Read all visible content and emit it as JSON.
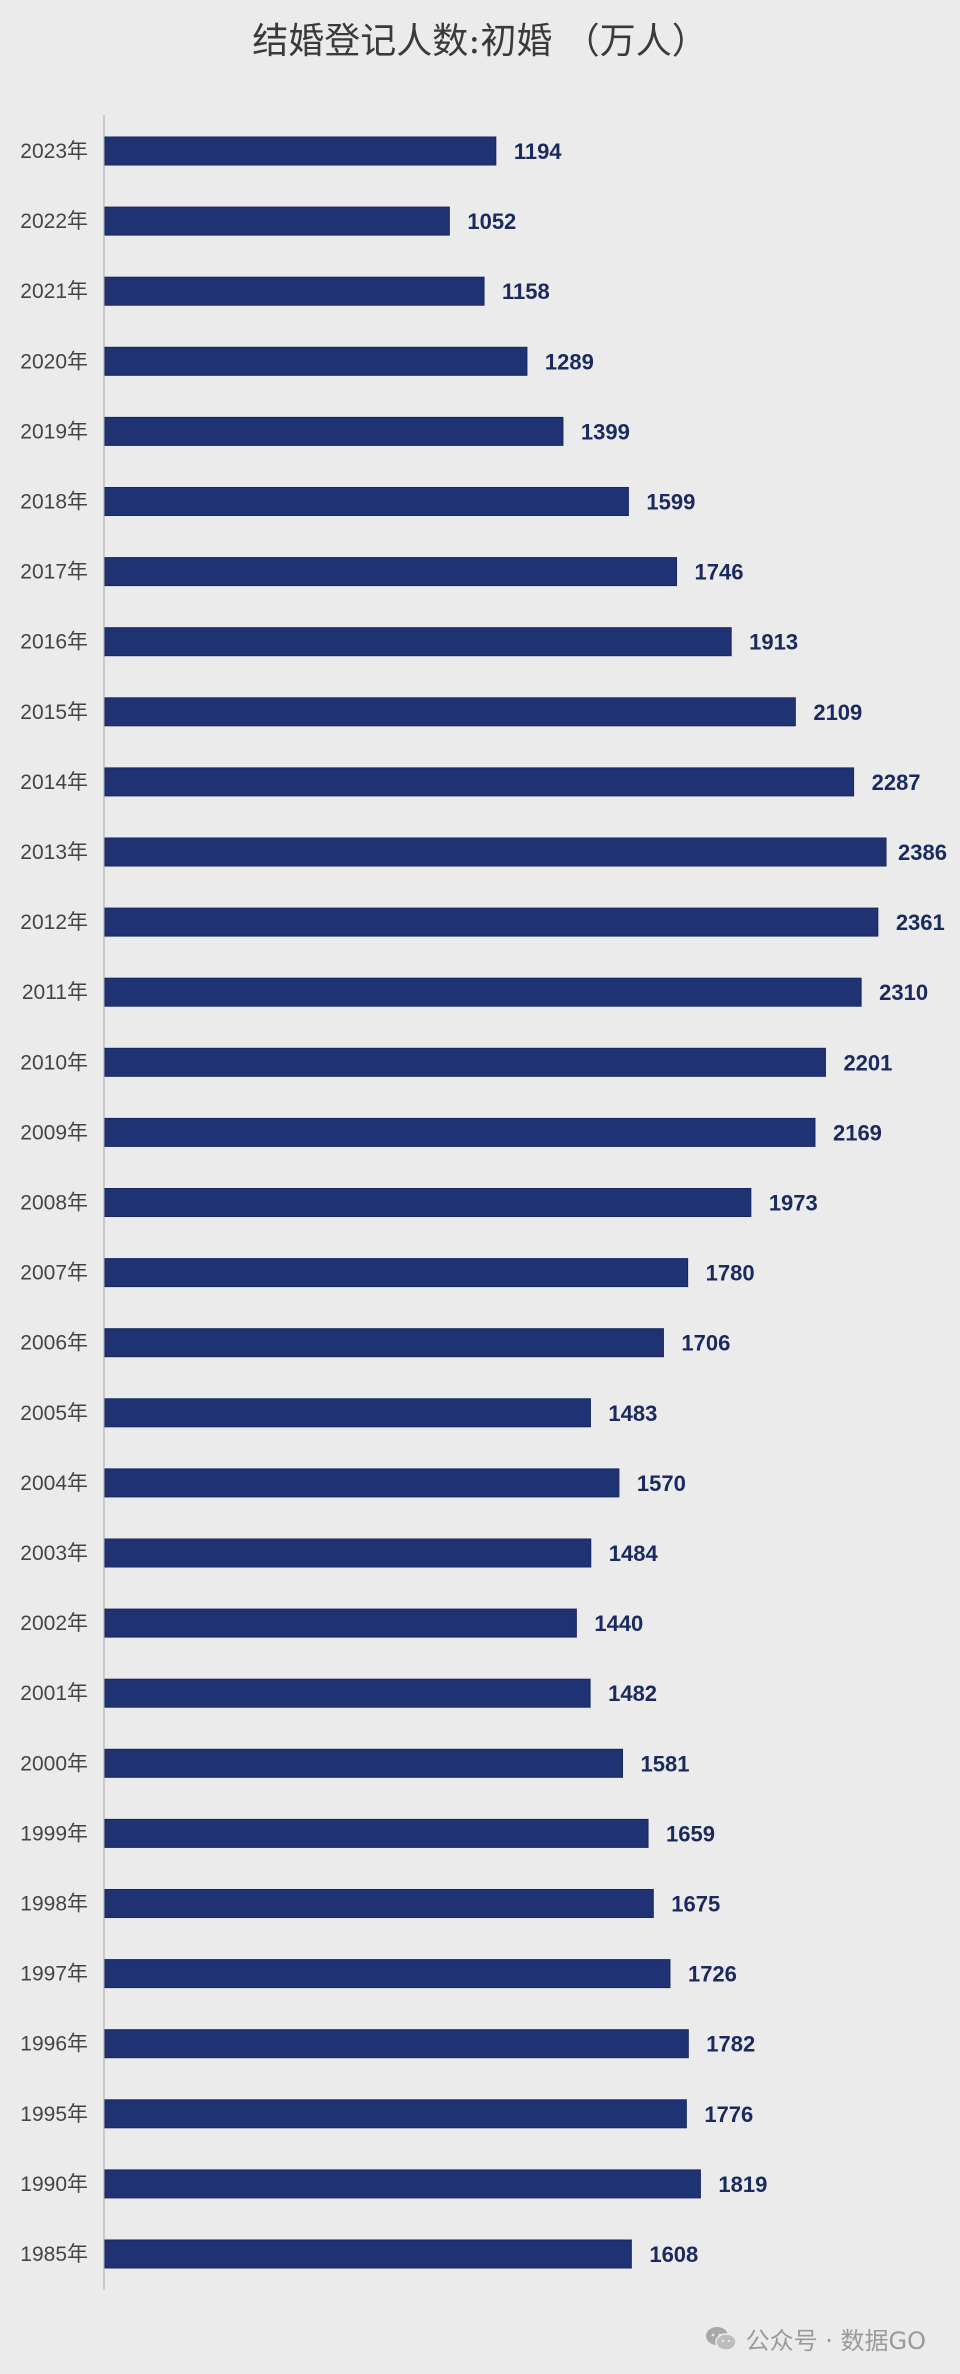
{
  "chart_data": {
    "type": "bar",
    "orientation": "horizontal",
    "title": "结婚登记人数:初婚 （万人）",
    "categories": [
      "2023年",
      "2022年",
      "2021年",
      "2020年",
      "2019年",
      "2018年",
      "2017年",
      "2016年",
      "2015年",
      "2014年",
      "2013年",
      "2012年",
      "2011年",
      "2010年",
      "2009年",
      "2008年",
      "2007年",
      "2006年",
      "2005年",
      "2004年",
      "2003年",
      "2002年",
      "2001年",
      "2000年",
      "1999年",
      "1998年",
      "1997年",
      "1996年",
      "1995年",
      "1990年",
      "1985年"
    ],
    "values": [
      1194,
      1052,
      1158,
      1289,
      1399,
      1599,
      1746,
      1913,
      2109,
      2287,
      2386,
      2361,
      2310,
      2201,
      2169,
      1973,
      1780,
      1706,
      1483,
      1570,
      1484,
      1440,
      1482,
      1581,
      1659,
      1675,
      1726,
      1782,
      1776,
      1819,
      1608
    ],
    "data_labels": true,
    "xlim": [
      0,
      2386
    ],
    "grid": false,
    "legend": "none",
    "colors": {
      "bar": "#1f3374",
      "bar_edge": "#16275c",
      "label": "#1a2a5e",
      "background": "#ebebeb",
      "axis": "#bfbfbf"
    }
  },
  "watermark": {
    "text": "公众号 · 数据GO",
    "icon": "wechat-icon"
  }
}
